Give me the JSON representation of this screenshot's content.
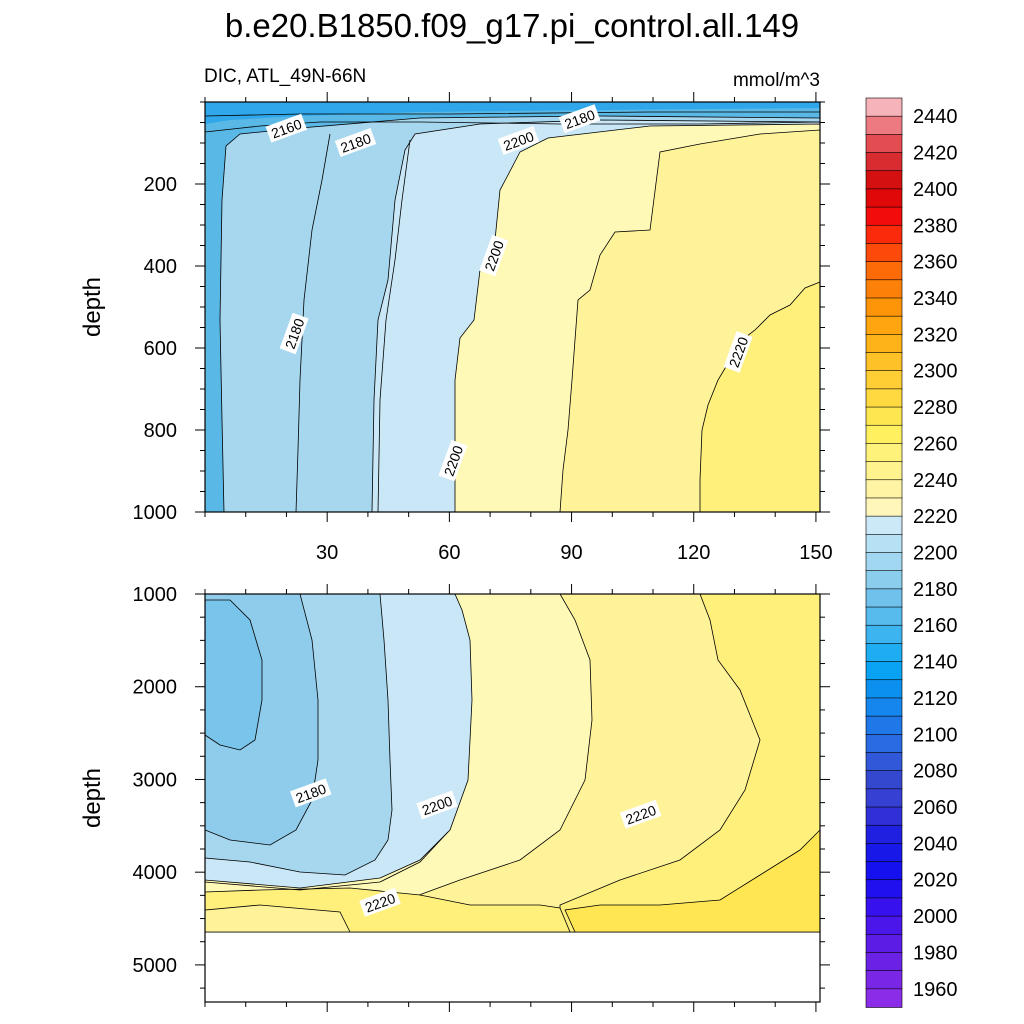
{
  "chart_data": {
    "type": "heatmap",
    "title": "b.e20.B1850.f09_g17.pi_control.all.149",
    "subtitle_left": "DIC, ATL_49N-66N",
    "subtitle_right": "mmol/m^3",
    "xlabel": "",
    "ylabel": "depth",
    "xlim": [
      0,
      151
    ],
    "x_ticks": [
      "30",
      "60",
      "90",
      "120",
      "150"
    ],
    "x_tick_values": [
      30,
      60,
      90,
      120,
      150
    ],
    "panels": [
      {
        "name": "upper",
        "ylim": [
          0,
          1000
        ],
        "y_ticks": [
          "200",
          "400",
          "600",
          "800",
          "1000"
        ],
        "y_tick_values": [
          200,
          400,
          600,
          800,
          1000
        ],
        "contour_labels": [
          {
            "text": "2160",
            "x": 20,
            "y": 65
          },
          {
            "text": "2180",
            "x": 37,
            "y": 100
          },
          {
            "text": "2180",
            "x": 92,
            "y": 42
          },
          {
            "text": "2200",
            "x": 77,
            "y": 95
          },
          {
            "text": "2200",
            "x": 71,
            "y": 375
          },
          {
            "text": "2180",
            "x": 22,
            "y": 565
          },
          {
            "text": "2200",
            "x": 61,
            "y": 875
          },
          {
            "text": "2220",
            "x": 131,
            "y": 610
          }
        ]
      },
      {
        "name": "lower",
        "ylim": [
          1000,
          5400
        ],
        "y_ticks": [
          "1000",
          "2000",
          "3000",
          "4000",
          "5000"
        ],
        "y_tick_values": [
          1000,
          2000,
          3000,
          4000,
          5000
        ],
        "contour_labels": [
          {
            "text": "2180",
            "x": 26,
            "y": 3150
          },
          {
            "text": "2200",
            "x": 57,
            "y": 3280
          },
          {
            "text": "2220",
            "x": 107,
            "y": 3380
          },
          {
            "text": "2220",
            "x": 43,
            "y": 4330
          }
        ]
      }
    ],
    "colorbar": {
      "labels": [
        "2440",
        "2420",
        "2400",
        "2380",
        "2360",
        "2340",
        "2320",
        "2300",
        "2280",
        "2260",
        "2240",
        "2220",
        "2200",
        "2180",
        "2160",
        "2140",
        "2120",
        "2100",
        "2080",
        "2060",
        "2040",
        "2020",
        "2000",
        "1980",
        "1960"
      ],
      "range": [
        1950,
        2450
      ],
      "step": 10,
      "colors_top_to_bottom": [
        "#f6b3b9",
        "#ec7a80",
        "#e34c50",
        "#d92c30",
        "#d41010",
        "#e00808",
        "#f20c0c",
        "#fa2a0a",
        "#fb4a0a",
        "#fd6a08",
        "#fd8008",
        "#fe9408",
        "#fea510",
        "#feb318",
        "#ffc128",
        "#ffcd34",
        "#fed940",
        "#fee650",
        "#fff060",
        "#fff27a",
        "#fff38e",
        "#fff4a4",
        "#fff6ba",
        "#cbe9f7",
        "#b6e0f4",
        "#a1d7f0",
        "#8bcdec",
        "#70c2ec",
        "#57bbee",
        "#3cb4f0",
        "#1eacf2",
        "#0aa3f3",
        "#0c90f0",
        "#1586ee",
        "#2078e8",
        "#2a6ae2",
        "#3058d8",
        "#3448cf",
        "#3640d2",
        "#3030d8",
        "#2020e0",
        "#1818e8",
        "#1410ee",
        "#2010f0",
        "#3812ee",
        "#4a16ea",
        "#5c1ce6",
        "#6c22e4",
        "#7a26e6",
        "#8a2ce8"
      ]
    },
    "colors": {
      "dark_blue": "#59b8e6",
      "mid_blue": "#a6d7ef",
      "light_blue": "#c9e7f7",
      "pale_yellow": "#fff9b8",
      "light_yellow": "#fff39a",
      "yellow": "#fff07c",
      "deep_yellow": "#ffe652"
    }
  }
}
